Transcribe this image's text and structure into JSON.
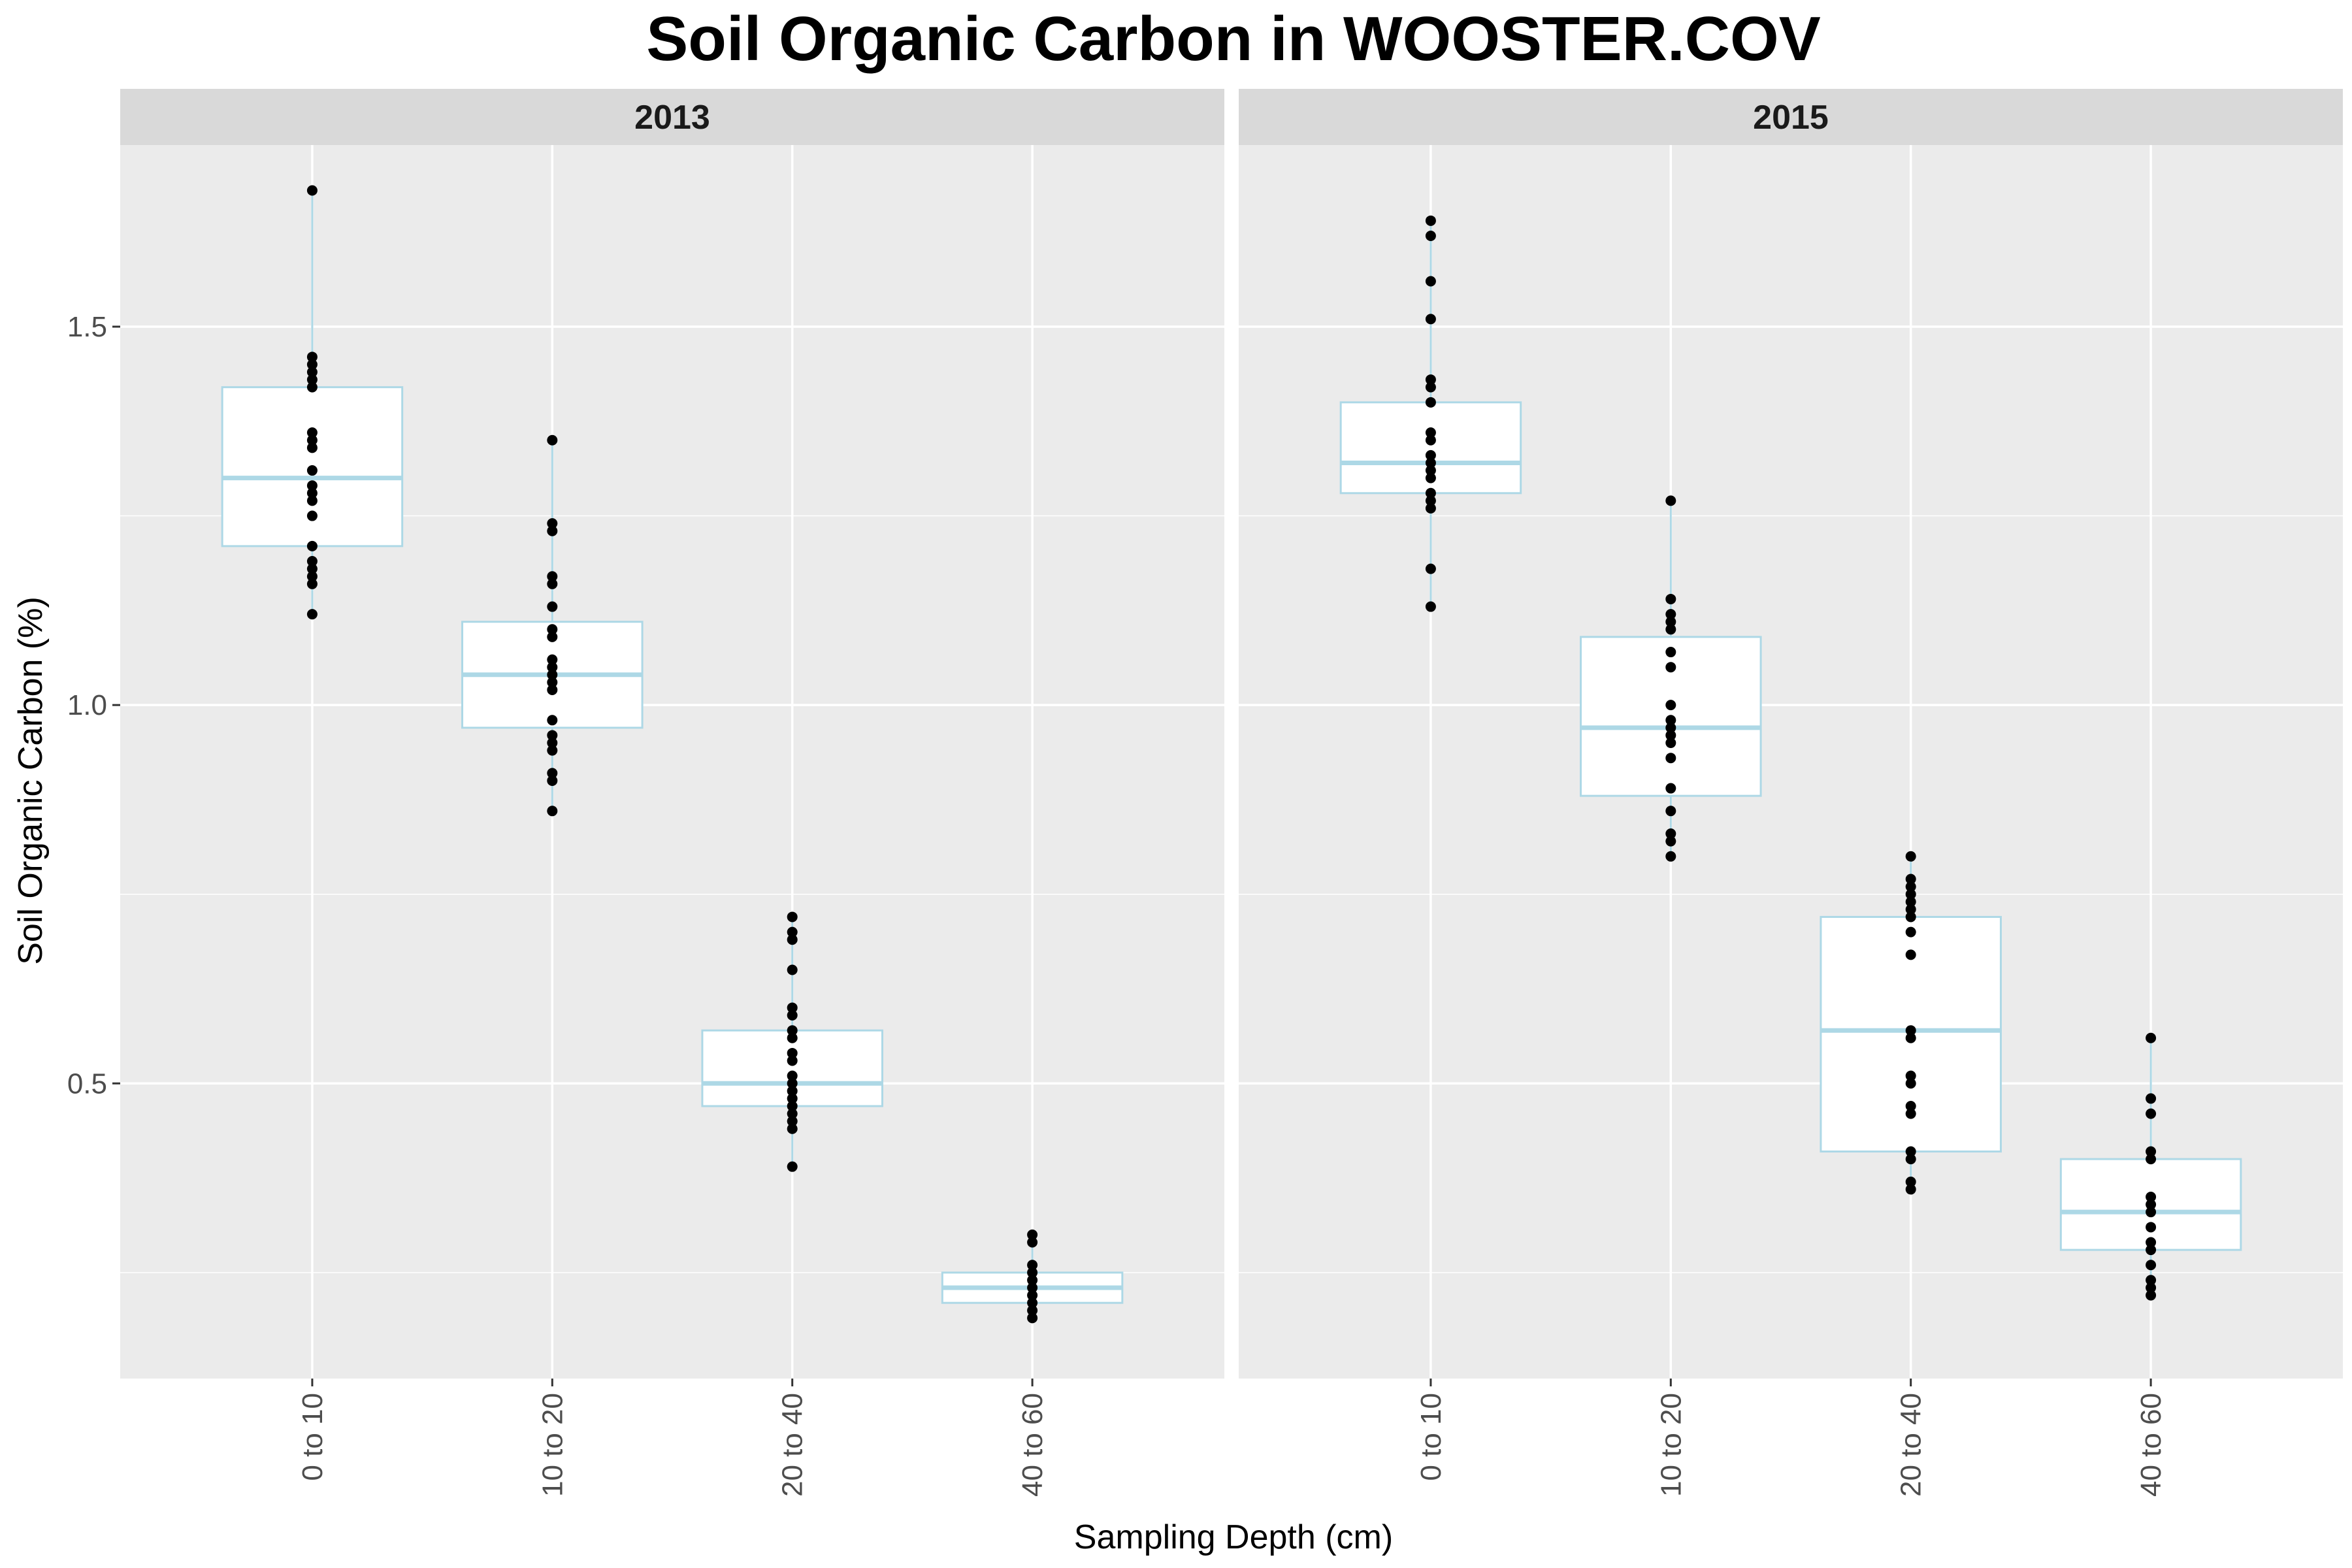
{
  "chart_data": {
    "type": "box",
    "title": "Soil Organic Carbon in WOOSTER.COV",
    "xlabel": "Sampling Depth (cm)",
    "ylabel": "Soil Organic Carbon (%)",
    "ylim": [
      0.11,
      1.74
    ],
    "yticks": [
      0.5,
      1.0,
      1.5
    ],
    "ytick_labels": [
      "0.5",
      "1.0",
      "1.5"
    ],
    "categories": [
      "0 to 10",
      "10 to 20",
      "20 to 40",
      "40 to 60"
    ],
    "grid": true,
    "colors": {
      "panel_bg": "#EBEBEB",
      "strip_bg": "#D9D9D9",
      "grid": "#FFFFFF",
      "box_outline": "#ADD8E6",
      "box_fill": "#FFFFFF",
      "points": "#000000"
    },
    "panels": [
      {
        "label": "2013",
        "boxes": [
          {
            "category": "0 to 10",
            "min": 1.12,
            "q1": 1.21,
            "median": 1.3,
            "q3": 1.42,
            "max": 1.68,
            "points": [
              1.68,
              1.46,
              1.45,
              1.44,
              1.43,
              1.42,
              1.36,
              1.35,
              1.34,
              1.31,
              1.29,
              1.28,
              1.27,
              1.25,
              1.21,
              1.19,
              1.18,
              1.17,
              1.16,
              1.12
            ]
          },
          {
            "category": "10 to 20",
            "min": 0.86,
            "q1": 0.97,
            "median": 1.04,
            "q3": 1.11,
            "max": 1.35,
            "points": [
              1.35,
              1.24,
              1.23,
              1.17,
              1.16,
              1.13,
              1.1,
              1.09,
              1.06,
              1.05,
              1.04,
              1.03,
              1.02,
              0.98,
              0.96,
              0.95,
              0.94,
              0.91,
              0.9,
              0.86
            ]
          },
          {
            "category": "20 to 40",
            "min": 0.39,
            "q1": 0.47,
            "median": 0.5,
            "q3": 0.57,
            "max": 0.72,
            "points": [
              0.72,
              0.7,
              0.69,
              0.65,
              0.6,
              0.59,
              0.57,
              0.56,
              0.54,
              0.53,
              0.51,
              0.5,
              0.49,
              0.48,
              0.47,
              0.46,
              0.45,
              0.44,
              0.39
            ]
          },
          {
            "category": "40 to 60",
            "min": 0.19,
            "q1": 0.21,
            "median": 0.23,
            "q3": 0.25,
            "max": 0.3,
            "points": [
              0.3,
              0.29,
              0.26,
              0.25,
              0.24,
              0.23,
              0.22,
              0.21,
              0.2,
              0.19
            ]
          }
        ]
      },
      {
        "label": "2015",
        "boxes": [
          {
            "category": "0 to 10",
            "min": 1.13,
            "q1": 1.28,
            "median": 1.32,
            "q3": 1.4,
            "max": 1.64,
            "points": [
              1.64,
              1.62,
              1.56,
              1.51,
              1.43,
              1.42,
              1.4,
              1.36,
              1.35,
              1.33,
              1.32,
              1.31,
              1.3,
              1.28,
              1.27,
              1.26,
              1.18,
              1.13
            ]
          },
          {
            "category": "10 to 20",
            "min": 0.8,
            "q1": 0.88,
            "median": 0.97,
            "q3": 1.09,
            "max": 1.27,
            "points": [
              1.27,
              1.14,
              1.12,
              1.11,
              1.1,
              1.07,
              1.05,
              1.0,
              0.98,
              0.97,
              0.96,
              0.95,
              0.93,
              0.89,
              0.86,
              0.83,
              0.82,
              0.8
            ]
          },
          {
            "category": "20 to 40",
            "min": 0.36,
            "q1": 0.41,
            "median": 0.57,
            "q3": 0.72,
            "max": 0.8,
            "points": [
              0.8,
              0.77,
              0.76,
              0.75,
              0.74,
              0.73,
              0.72,
              0.7,
              0.67,
              0.57,
              0.56,
              0.51,
              0.5,
              0.47,
              0.46,
              0.41,
              0.4,
              0.37,
              0.36
            ]
          },
          {
            "category": "40 to 60",
            "min": 0.22,
            "q1": 0.28,
            "median": 0.33,
            "q3": 0.4,
            "max": 0.56,
            "points": [
              0.56,
              0.48,
              0.46,
              0.41,
              0.4,
              0.35,
              0.34,
              0.33,
              0.31,
              0.29,
              0.28,
              0.26,
              0.24,
              0.23,
              0.22
            ]
          }
        ]
      }
    ]
  }
}
